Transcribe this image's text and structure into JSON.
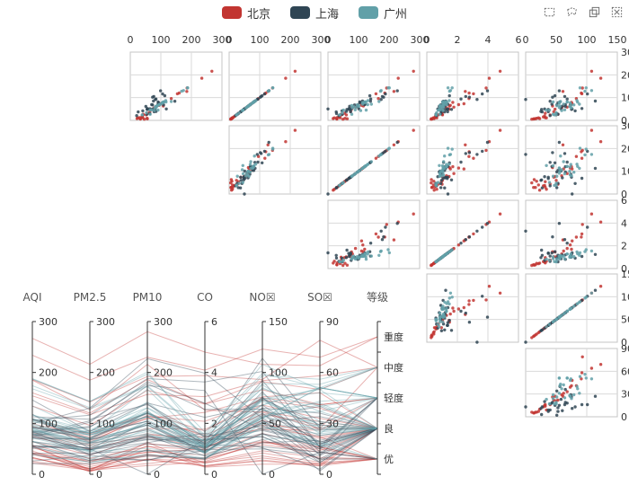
{
  "legend": [
    {
      "name": "北京",
      "color": "#c23531"
    },
    {
      "name": "上海",
      "color": "#2f4554"
    },
    {
      "name": "广州",
      "color": "#61a0a8"
    }
  ],
  "toolbox": [
    "rect-select-icon",
    "lasso-select-icon",
    "keep-selection-icon",
    "clear-selection-icon"
  ],
  "chart_data": {
    "type": "scatter-matrix-with-parallel-coordinates",
    "dimensions": [
      {
        "name": "AQI",
        "range": [
          0,
          300
        ],
        "ticks": [
          0,
          100,
          200,
          300
        ]
      },
      {
        "name": "PM2.5",
        "range": [
          0,
          300
        ],
        "ticks": [
          0,
          100,
          200,
          300
        ]
      },
      {
        "name": "PM10",
        "range": [
          0,
          300
        ],
        "ticks": [
          0,
          100,
          200,
          300
        ]
      },
      {
        "name": "CO",
        "range": [
          0,
          6
        ],
        "ticks": [
          0,
          2,
          4,
          6
        ]
      },
      {
        "name": "NO☒",
        "range": [
          0,
          150
        ],
        "ticks": [
          0,
          50,
          100,
          150
        ]
      },
      {
        "name": "SO☒",
        "range": [
          0,
          90
        ],
        "ticks": [
          0,
          30,
          60,
          90
        ]
      },
      {
        "name": "等级",
        "type": "category",
        "categories": [
          "优",
          "良",
          "轻度",
          "中度",
          "重度"
        ]
      }
    ],
    "series": [
      {
        "name": "北京",
        "color": "#c23531",
        "data": [
          [
            55,
            9,
            56,
            0.46,
            18,
            6,
            "良"
          ],
          [
            25,
            11,
            21,
            0.65,
            34,
            9,
            "优"
          ],
          [
            56,
            7,
            63,
            0.3,
            14,
            5,
            "良"
          ],
          [
            33,
            7,
            29,
            0.33,
            16,
            6,
            "优"
          ],
          [
            42,
            24,
            44,
            0.76,
            40,
            16,
            "优"
          ],
          [
            82,
            58,
            90,
            1.77,
            68,
            33,
            "良"
          ],
          [
            74,
            49,
            77,
            1.46,
            48,
            27,
            "良"
          ],
          [
            78,
            55,
            80,
            1.29,
            59,
            29,
            "良"
          ],
          [
            267,
            216,
            280,
            4.8,
            108,
            64,
            "重度"
          ],
          [
            185,
            127,
            216,
            2.52,
            61,
            27,
            "中度"
          ],
          [
            39,
            19,
            38,
            0.57,
            31,
            15,
            "优"
          ],
          [
            41,
            11,
            40,
            0.43,
            21,
            7,
            "优"
          ],
          [
            64,
            38,
            74,
            1.04,
            46,
            22,
            "良"
          ],
          [
            108,
            79,
            120,
            1.7,
            75,
            41,
            "轻度"
          ],
          [
            108,
            63,
            116,
            1.48,
            44,
            26,
            "轻度"
          ],
          [
            33,
            6,
            29,
            0.34,
            13,
            5,
            "优"
          ],
          [
            94,
            66,
            110,
            1.54,
            62,
            31,
            "良"
          ],
          [
            186,
            142,
            192,
            3.88,
            93,
            79,
            "中度"
          ],
          [
            57,
            31,
            54,
            0.96,
            32,
            14,
            "良"
          ],
          [
            22,
            8,
            17,
            0.48,
            23,
            10,
            "优"
          ],
          [
            39,
            15,
            36,
            0.61,
            29,
            13,
            "优"
          ],
          [
            94,
            69,
            114,
            2.08,
            73,
            39,
            "良"
          ],
          [
            99,
            73,
            110,
            2.43,
            76,
            48,
            "良"
          ],
          [
            31,
            12,
            30,
            0.5,
            32,
            16,
            "优"
          ],
          [
            42,
            27,
            43,
            1,
            53,
            22,
            "优"
          ],
          [
            154,
            117,
            157,
            3.05,
            92,
            58,
            "中度"
          ],
          [
            234,
            185,
            230,
            4.09,
            123,
            69,
            "重度"
          ],
          [
            160,
            120,
            186,
            2.77,
            91,
            50,
            "中度"
          ],
          [
            134,
            96,
            165,
            2.76,
            83,
            41,
            "轻度"
          ],
          [
            52,
            24,
            60,
            1.03,
            50,
            21,
            "良"
          ],
          [
            46,
            5,
            49,
            0.28,
            10,
            6,
            "优"
          ]
        ]
      },
      {
        "name": "上海",
        "color": "#2f4554",
        "data": [
          [
            26,
            37,
            27,
            1.163,
            27,
            13,
            "优"
          ],
          [
            85,
            62,
            71,
            1.195,
            60,
            8,
            "良"
          ],
          [
            78,
            38,
            74,
            1.363,
            37,
            7,
            "良"
          ],
          [
            21,
            21,
            36,
            0.634,
            40,
            9,
            "优"
          ],
          [
            41,
            42,
            46,
            0.915,
            81,
            13,
            "优"
          ],
          [
            56,
            52,
            69,
            1.067,
            92,
            16,
            "良"
          ],
          [
            64,
            30,
            28,
            0.924,
            51,
            2,
            "良"
          ],
          [
            55,
            48,
            74,
            1.236,
            75,
            26,
            "良"
          ],
          [
            76,
            85,
            113,
            1.237,
            114,
            27,
            "良"
          ],
          [
            91,
            81,
            104,
            1.041,
            56,
            40,
            "良"
          ],
          [
            84,
            39,
            60,
            0.964,
            25,
            11,
            "良"
          ],
          [
            64,
            51,
            101,
            0.862,
            58,
            23,
            "良"
          ],
          [
            70,
            69,
            120,
            1.198,
            65,
            36,
            "良"
          ],
          [
            77,
            105,
            178,
            2.549,
            64,
            16,
            "良"
          ],
          [
            109,
            68,
            87,
            0.996,
            74,
            29,
            "轻度"
          ],
          [
            73,
            68,
            97,
            0.905,
            51,
            34,
            "良"
          ],
          [
            54,
            27,
            47,
            0.592,
            53,
            12,
            "良"
          ],
          [
            51,
            61,
            97,
            0.811,
            65,
            19,
            "良"
          ],
          [
            91,
            71,
            121,
            1.374,
            43,
            18,
            "良"
          ],
          [
            73,
            102,
            182,
            2.787,
            44,
            19,
            "良"
          ],
          [
            73,
            50,
            76,
            0.717,
            31,
            20,
            "良"
          ],
          [
            84,
            94,
            140,
            2.238,
            68,
            18,
            "良"
          ],
          [
            93,
            77,
            104,
            1.165,
            53,
            7,
            "良"
          ],
          [
            99,
            130,
            227,
            3.97,
            55,
            15,
            "良"
          ],
          [
            146,
            84,
            139,
            1.094,
            40,
            17,
            "轻度"
          ],
          [
            113,
            108,
            137,
            1.481,
            48,
            15,
            "轻度"
          ],
          [
            81,
            48,
            62,
            1.619,
            26,
            3,
            "良"
          ],
          [
            56,
            48,
            68,
            1.336,
            37,
            9,
            "良"
          ],
          [
            82,
            92,
            174,
            3.29,
            0,
            13,
            "良"
          ],
          [
            106,
            116,
            188,
            3.628,
            101,
            16,
            "轻度"
          ],
          [
            118,
            50,
            0,
            1.383,
            76,
            11,
            "轻度"
          ]
        ]
      },
      {
        "name": "广州",
        "color": "#61a0a8",
        "data": [
          [
            91,
            45,
            125,
            0.82,
            34,
            23,
            "良"
          ],
          [
            65,
            27,
            78,
            0.86,
            45,
            29,
            "良"
          ],
          [
            83,
            60,
            84,
            1.09,
            73,
            27,
            "良"
          ],
          [
            109,
            81,
            121,
            1.28,
            68,
            51,
            "轻度"
          ],
          [
            106,
            77,
            114,
            1.07,
            55,
            51,
            "轻度"
          ],
          [
            109,
            81,
            121,
            1.28,
            68,
            51,
            "轻度"
          ],
          [
            106,
            77,
            114,
            1.07,
            55,
            51,
            "轻度"
          ],
          [
            89,
            65,
            78,
            0.86,
            51,
            26,
            "良"
          ],
          [
            53,
            33,
            47,
            0.64,
            50,
            17,
            "良"
          ],
          [
            80,
            55,
            80,
            1.01,
            75,
            24,
            "良"
          ],
          [
            117,
            81,
            124,
            1.03,
            45,
            24,
            "轻度"
          ],
          [
            99,
            71,
            142,
            1.1,
            62,
            42,
            "良"
          ],
          [
            95,
            69,
            130,
            1.28,
            74,
            50,
            "良"
          ],
          [
            116,
            87,
            131,
            1.47,
            84,
            40,
            "轻度"
          ],
          [
            108,
            80,
            121,
            1.3,
            85,
            37,
            "轻度"
          ],
          [
            134,
            83,
            167,
            1.16,
            57,
            43,
            "轻度"
          ],
          [
            79,
            43,
            107,
            1.05,
            59,
            37,
            "良"
          ],
          [
            71,
            46,
            89,
            0.86,
            64,
            25,
            "良"
          ],
          [
            97,
            71,
            113,
            1.17,
            88,
            31,
            "良"
          ],
          [
            84,
            57,
            91,
            0.85,
            55,
            31,
            "良"
          ],
          [
            87,
            63,
            101,
            0.9,
            56,
            41,
            "良"
          ],
          [
            104,
            77,
            119,
            1.09,
            73,
            48,
            "轻度"
          ],
          [
            87,
            62,
            100,
            1,
            72,
            28,
            "良"
          ],
          [
            168,
            128,
            172,
            1.49,
            97,
            56,
            "中度"
          ],
          [
            65,
            45,
            51,
            0.74,
            39,
            17,
            "良"
          ],
          [
            39,
            24,
            38,
            0.61,
            47,
            17,
            "优"
          ],
          [
            39,
            24,
            39,
            0.59,
            50,
            19,
            "优"
          ],
          [
            93,
            68,
            96,
            1.05,
            79,
            29,
            "良"
          ],
          [
            188,
            143,
            197,
            1.66,
            99,
            51,
            "中度"
          ],
          [
            174,
            131,
            174,
            1.55,
            108,
            50,
            "中度"
          ],
          [
            187,
            143,
            201,
            1.39,
            89,
            53,
            "中度"
          ]
        ]
      }
    ]
  }
}
